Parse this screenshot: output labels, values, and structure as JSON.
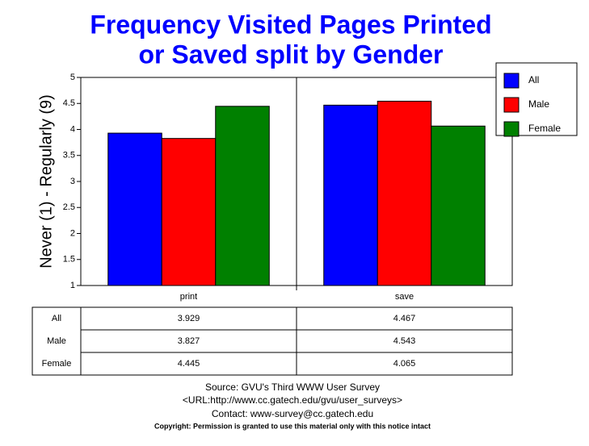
{
  "chart_data": {
    "type": "bar",
    "title": [
      "Frequency Visited Pages Printed",
      "or Saved split by Gender"
    ],
    "y_label": "Never (1) - Regularly (9)",
    "categories": [
      "print",
      "save"
    ],
    "series": [
      {
        "name": "All",
        "color": "#0000ff",
        "values": [
          3.929,
          4.467
        ]
      },
      {
        "name": "Male",
        "color": "#ff0000",
        "values": [
          3.827,
          4.543
        ]
      },
      {
        "name": "Female",
        "color": "#008000",
        "values": [
          4.445,
          4.065
        ]
      }
    ],
    "ylim": [
      1,
      5
    ],
    "yticks": [
      1,
      1.5,
      2,
      2.5,
      3,
      3.5,
      4,
      4.5,
      5
    ],
    "grid": false,
    "legend": "top-right",
    "footer": [
      "Source: GVU's Third WWW User Survey",
      "<URL:http://www.cc.gatech.edu/gvu/user_surveys>",
      "Contact: www-survey@cc.gatech.edu",
      "Copyright: Permission is granted to use this material only with this notice intact"
    ]
  }
}
